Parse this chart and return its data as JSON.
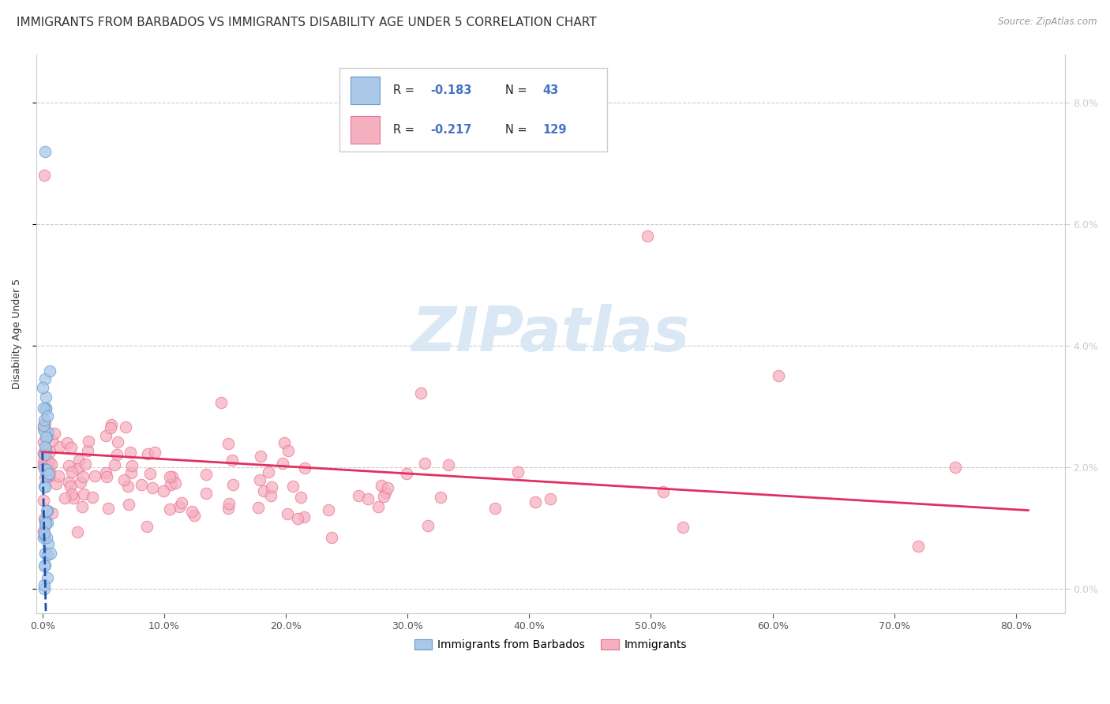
{
  "title": "IMMIGRANTS FROM BARBADOS VS IMMIGRANTS DISABILITY AGE UNDER 5 CORRELATION CHART",
  "source": "Source: ZipAtlas.com",
  "ylabel": "Disability Age Under 5",
  "legend_label_blue": "Immigrants from Barbados",
  "legend_label_pink": "Immigrants",
  "R_blue_str": "-0.183",
  "N_blue_str": "43",
  "R_pink_str": "-0.217",
  "N_pink_str": "129",
  "blue_fill": "#aac8e8",
  "pink_fill": "#f5b0c0",
  "blue_edge": "#6699cc",
  "pink_edge": "#e87090",
  "trend_blue_color": "#1a50b0",
  "trend_pink_color": "#e03060",
  "label_blue_color": "#4472c4",
  "watermark_color": "#dae8f5",
  "title_color": "#333333",
  "tick_color_x": "#555555",
  "tick_color_y_right": "#4472c4",
  "grid_color": "#cccccc",
  "background": "#ffffff",
  "title_fontsize": 11,
  "tick_fontsize": 9,
  "ylabel_fontsize": 9,
  "source_fontsize": 8.5,
  "x_ticks": [
    0.0,
    0.1,
    0.2,
    0.3,
    0.4,
    0.5,
    0.6,
    0.7,
    0.8
  ],
  "x_labels": [
    "0.0%",
    "10.0%",
    "20.0%",
    "30.0%",
    "40.0%",
    "50.0%",
    "60.0%",
    "70.0%",
    "80.0%"
  ],
  "y_ticks": [
    0.0,
    0.02,
    0.04,
    0.06,
    0.08
  ],
  "y_labels": [
    "0.0%",
    "2.0%",
    "4.0%",
    "6.0%",
    "8.0%"
  ],
  "xlim": [
    -0.005,
    0.84
  ],
  "ylim": [
    -0.004,
    0.088
  ]
}
